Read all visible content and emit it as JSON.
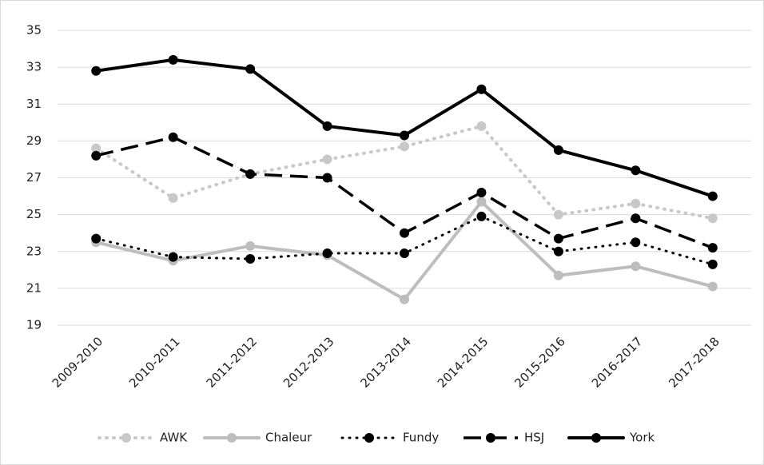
{
  "chart_data": {
    "type": "line",
    "categories": [
      "2009-2010",
      "2010-2011",
      "2011-2012",
      "2012-2013",
      "2013-2014",
      "2014-2015",
      "2015-2016",
      "2016-2017",
      "2017-2018"
    ],
    "series": [
      {
        "name": "AWK",
        "color": "#c8c8c8",
        "line_style": "dotted",
        "values": [
          28.6,
          25.9,
          27.2,
          28.0,
          28.7,
          29.8,
          25.0,
          25.6,
          24.8
        ]
      },
      {
        "name": "Chaleur",
        "color": "#bdbdbd",
        "line_style": "solid",
        "values": [
          23.5,
          22.5,
          23.3,
          22.8,
          20.4,
          25.7,
          21.7,
          22.2,
          21.1
        ]
      },
      {
        "name": "Fundy",
        "color": "#000000",
        "line_style": "dotted",
        "values": [
          23.7,
          22.7,
          22.6,
          22.9,
          22.9,
          24.9,
          23.0,
          23.5,
          22.3
        ]
      },
      {
        "name": "HSJ",
        "color": "#000000",
        "line_style": "dashed",
        "values": [
          28.2,
          29.2,
          27.2,
          27.0,
          24.0,
          26.2,
          23.7,
          24.8,
          23.2
        ]
      },
      {
        "name": "York",
        "color": "#000000",
        "line_style": "solid",
        "values": [
          32.8,
          33.4,
          32.9,
          29.8,
          29.3,
          31.8,
          28.5,
          27.4,
          26.0
        ]
      }
    ],
    "ylim": [
      19,
      35
    ],
    "yticks": [
      19,
      21,
      23,
      25,
      27,
      29,
      31,
      33,
      35
    ],
    "grid": true,
    "legend": "bottom"
  }
}
